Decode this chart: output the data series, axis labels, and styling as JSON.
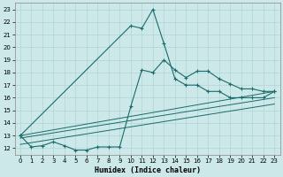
{
  "xlabel": "Humidex (Indice chaleur)",
  "xlim": [
    -0.5,
    23.5
  ],
  "ylim": [
    11.5,
    23.5
  ],
  "xticks": [
    0,
    1,
    2,
    3,
    4,
    5,
    6,
    7,
    8,
    9,
    10,
    11,
    12,
    13,
    14,
    15,
    16,
    17,
    18,
    19,
    20,
    21,
    22,
    23
  ],
  "yticks": [
    12,
    13,
    14,
    15,
    16,
    17,
    18,
    19,
    20,
    21,
    22,
    23
  ],
  "bg_color": "#cce8e8",
  "grid_color": "#b0d4d4",
  "line_color": "#1a6b6b",
  "line1_x": [
    0,
    1,
    2,
    3,
    4,
    5,
    6,
    7,
    8,
    9,
    10,
    11,
    12,
    13,
    14,
    15,
    16,
    17,
    18,
    19,
    20,
    21,
    22,
    23
  ],
  "line1_y": [
    13.0,
    12.1,
    12.2,
    12.5,
    12.2,
    11.85,
    11.85,
    12.1,
    12.1,
    12.1,
    15.3,
    18.2,
    18.0,
    19.0,
    18.2,
    17.6,
    18.1,
    18.1,
    17.5,
    17.1,
    16.7,
    16.7,
    16.5,
    16.5
  ],
  "line2_x": [
    0,
    10,
    11,
    12,
    13,
    14,
    15,
    16,
    17,
    18,
    19,
    20,
    21,
    22,
    23
  ],
  "line2_y": [
    13.0,
    21.7,
    21.5,
    23.0,
    20.3,
    17.5,
    17.0,
    17.0,
    16.5,
    16.5,
    16.0,
    16.0,
    16.0,
    16.0,
    16.5
  ],
  "line3_x": [
    0,
    23
  ],
  "line3_y": [
    13.0,
    16.5
  ],
  "line4_x": [
    0,
    23
  ],
  "line4_y": [
    12.8,
    16.0
  ],
  "line5_x": [
    0,
    23
  ],
  "line5_y": [
    12.3,
    15.5
  ]
}
